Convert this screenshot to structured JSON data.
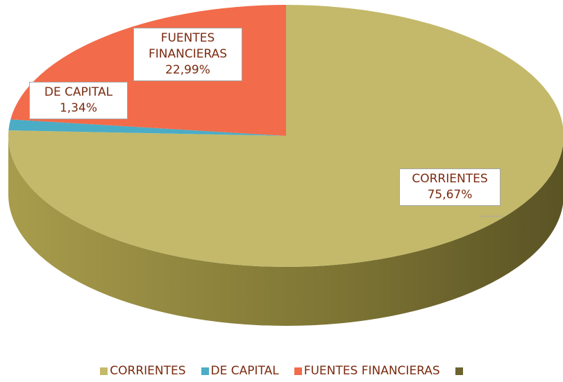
{
  "chart_data": {
    "type": "pie",
    "categories": [
      "CORRIENTES",
      "DE CAPITAL",
      "FUENTES FINANCIERAS"
    ],
    "values": [
      75.67,
      1.34,
      22.99
    ],
    "value_labels": [
      "75,67%",
      "1,34%",
      "22,99%"
    ],
    "colors": [
      "#c4b96a",
      "#4bacc6",
      "#f26b4a"
    ],
    "side_colors": [
      "#7d7434",
      "#2f7f94",
      "#b4482c"
    ]
  }
}
